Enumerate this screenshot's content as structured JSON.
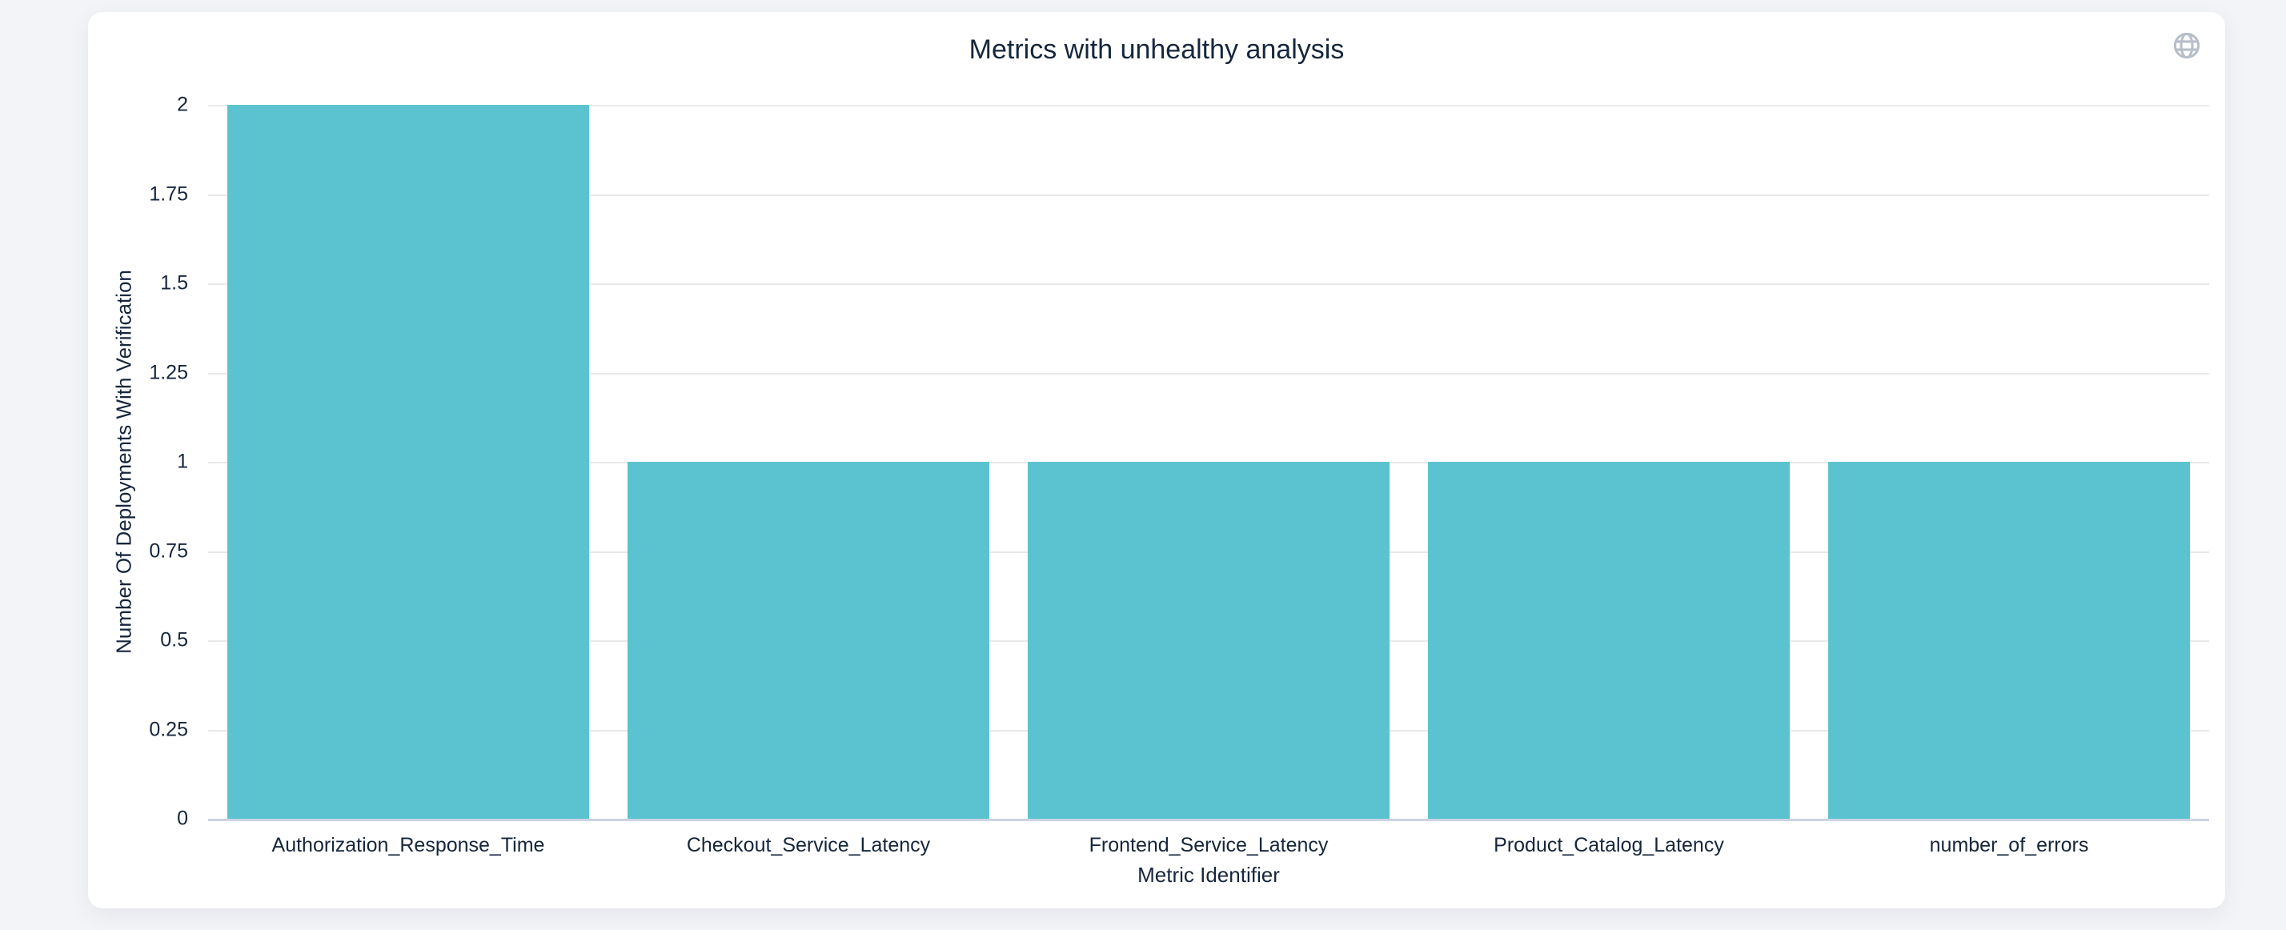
{
  "colors": {
    "page_bg": "#f3f4f7",
    "card_bg": "#ffffff",
    "icon": "#b7bec9"
  },
  "header": {
    "globe_icon": "globe-icon"
  },
  "chart_data": {
    "type": "bar",
    "title": "Metrics with unhealthy analysis",
    "categories": [
      "Authorization_Response_Time",
      "Checkout_Service_Latency",
      "Frontend_Service_Latency",
      "Product_Catalog_Latency",
      "number_of_errors"
    ],
    "values": [
      2,
      1,
      1,
      1,
      1
    ],
    "xlabel": "Metric Identifier",
    "ylabel": "Number Of Deployments With Verification",
    "ylim": [
      0,
      2
    ],
    "ytick_step": 0.25,
    "yticks": [
      "0",
      "0.25",
      "0.5",
      "0.75",
      "1",
      "1.25",
      "1.5",
      "1.75",
      "2"
    ],
    "grid": true,
    "legend_position": "none",
    "bar_color": "#5ac3cf",
    "grid_color": "#e9e9e9",
    "axis_line_color": "#ccd4e4",
    "text_color": "#16263c"
  }
}
